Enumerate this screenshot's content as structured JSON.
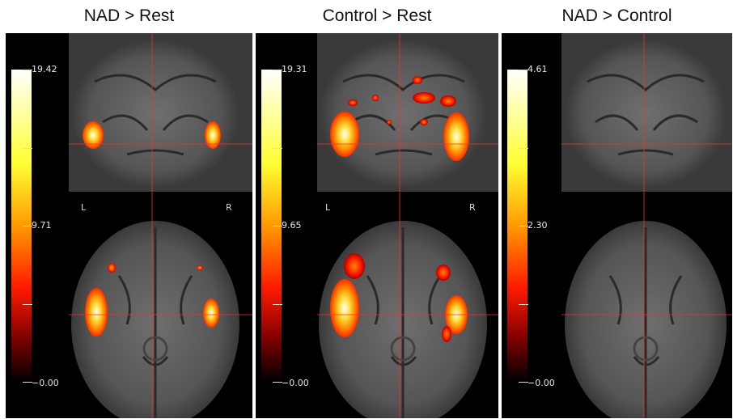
{
  "panels": [
    {
      "title": "NAD > Rest",
      "colorbar": {
        "max": "19.42",
        "mid": "9.71",
        "min": "−0.00"
      },
      "orientation": {
        "left": "L",
        "right": "R"
      },
      "activation": "moderate"
    },
    {
      "title": "Control > Rest",
      "colorbar": {
        "max": "19.31",
        "mid": "9.65",
        "min": "−0.00"
      },
      "orientation": {
        "left": "L",
        "right": "R"
      },
      "activation": "strong"
    },
    {
      "title": "NAD > Control",
      "colorbar": {
        "max": "4.61",
        "mid": "2.30",
        "min": "−0.00"
      },
      "orientation": {
        "left": "",
        "right": ""
      },
      "activation": "none"
    }
  ],
  "colors": {
    "background": "#000000",
    "crosshair": "#ff2a2a",
    "heatmap_low": "#800000",
    "heatmap_high": "#ffffff"
  }
}
